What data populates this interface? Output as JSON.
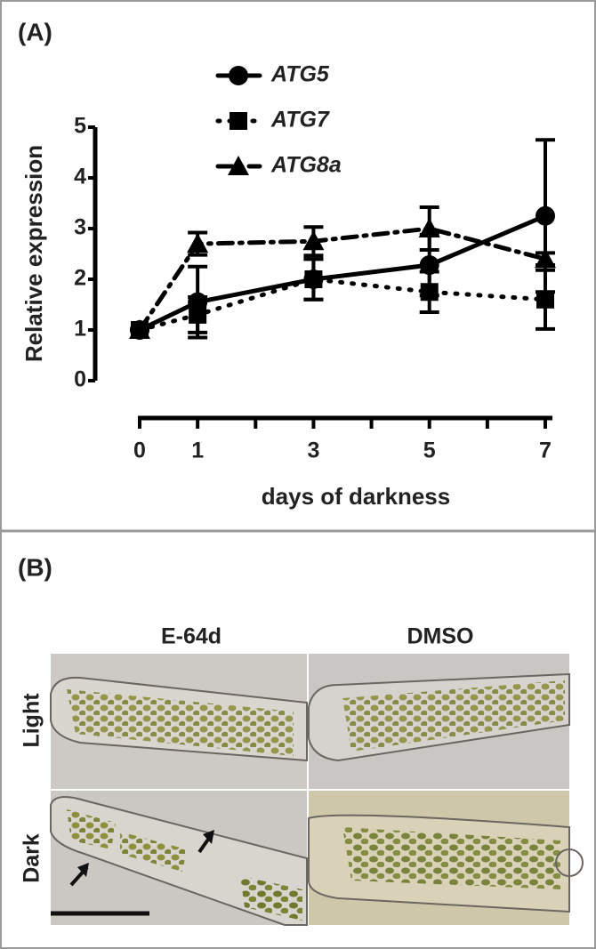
{
  "panel_a_label": "(A)",
  "chart_data": {
    "type": "line",
    "x": [
      0,
      1,
      3,
      5,
      7
    ],
    "xlim": [
      0,
      7
    ],
    "xticks": [
      0,
      1,
      3,
      5,
      7
    ],
    "xminorticks": [
      2,
      4,
      6
    ],
    "ylim": [
      0,
      5
    ],
    "yticks": [
      0,
      1,
      2,
      3,
      4,
      5
    ],
    "x_label": "days of darkness",
    "y_label": "Relative expression",
    "series": [
      {
        "name": "ATG5",
        "color": "#000000",
        "marker": "circle",
        "linestyle": "solid",
        "values": [
          1,
          1.55,
          2.0,
          2.28,
          3.25
        ],
        "errors": [
          0,
          0.7,
          0.4,
          0.6,
          1.5
        ]
      },
      {
        "name": "ATG7",
        "color": "#000000",
        "marker": "square",
        "linestyle": "dotted",
        "values": [
          1,
          1.3,
          2.0,
          1.75,
          1.6
        ],
        "errors": [
          0,
          0.35,
          0.4,
          0.4,
          0.58
        ]
      },
      {
        "name": "ATG8a",
        "color": "#000000",
        "marker": "triangle",
        "linestyle": "dashdot",
        "values": [
          1,
          2.7,
          2.75,
          3.0,
          2.4
        ],
        "errors": [
          0,
          0.22,
          0.28,
          0.42,
          0.12
        ]
      }
    ]
  },
  "panel_b": {
    "label": "(B)",
    "columns": [
      "E-64d",
      "DMSO"
    ],
    "rows": [
      "Light",
      "Dark"
    ]
  }
}
